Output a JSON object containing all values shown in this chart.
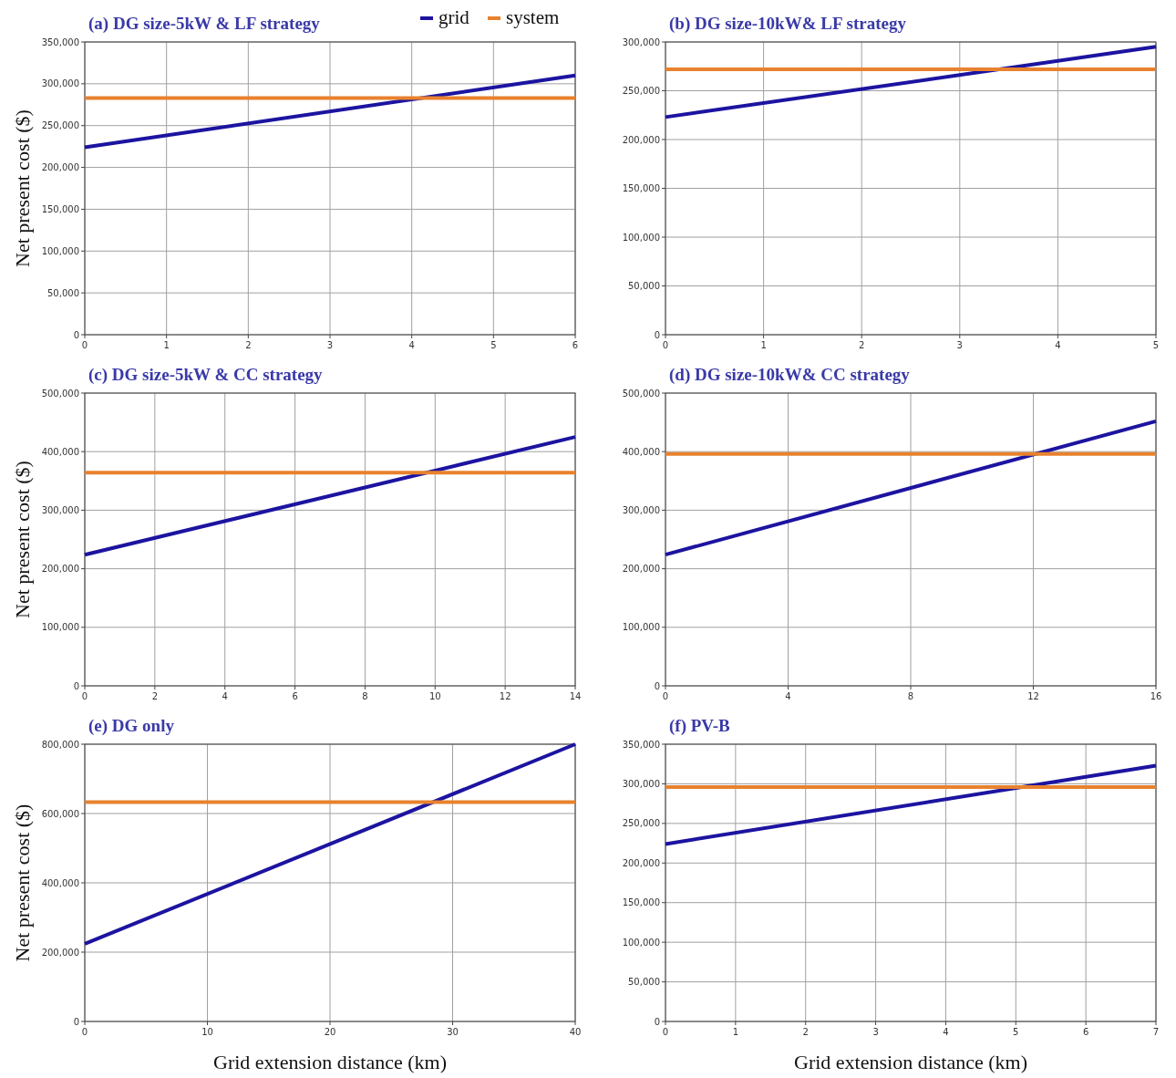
{
  "chart_data": [
    {
      "type": "line",
      "title": "(a) DG size-5kW & LF strategy",
      "ylabel": "Net present cost ($)",
      "legend": "top right",
      "grid": true,
      "xlim": [
        0,
        6
      ],
      "xticks": [
        0,
        1,
        2,
        3,
        4,
        5,
        6
      ],
      "ylim": [
        0,
        350000
      ],
      "yticks": [
        {
          "value": 0,
          "label": "0"
        },
        {
          "value": 50000,
          "label": "50,000"
        },
        {
          "value": 100000,
          "label": "100,000"
        },
        {
          "value": 150000,
          "label": "150,000"
        },
        {
          "value": 200000,
          "label": "200,000"
        },
        {
          "value": 250000,
          "label": "250,000"
        },
        {
          "value": 300000,
          "label": "300,000"
        },
        {
          "value": 350000,
          "label": "350,000"
        }
      ],
      "series": [
        {
          "name": "grid",
          "color": "#1c14a0",
          "x": [
            0,
            6
          ],
          "values": [
            224000,
            310000
          ]
        },
        {
          "name": "system",
          "color": "#e8822e",
          "x": [
            0,
            6
          ],
          "values": [
            283000,
            283000
          ]
        }
      ]
    },
    {
      "type": "line",
      "title": "(b) DG size-10kW& LF strategy",
      "grid": true,
      "xlim": [
        0,
        5
      ],
      "xticks": [
        0,
        1,
        2,
        3,
        4,
        5
      ],
      "ylim": [
        0,
        300000
      ],
      "yticks": [
        {
          "value": 0,
          "label": "0"
        },
        {
          "value": 50000,
          "label": "50,000"
        },
        {
          "value": 100000,
          "label": "100,000"
        },
        {
          "value": 150000,
          "label": "150,000"
        },
        {
          "value": 200000,
          "label": "200,000"
        },
        {
          "value": 250000,
          "label": "250,000"
        },
        {
          "value": 300000,
          "label": "300,000"
        }
      ],
      "series": [
        {
          "color": "#1c14a0",
          "x": [
            0,
            5
          ],
          "values": [
            223000,
            295000
          ]
        },
        {
          "color": "#e8822e",
          "x": [
            0,
            5
          ],
          "values": [
            272000,
            272000
          ]
        }
      ]
    },
    {
      "type": "line",
      "title": "(c) DG size-5kW & CC strategy",
      "ylabel": "Net present cost ($)",
      "grid": true,
      "xlim": [
        0,
        14
      ],
      "xticks": [
        0,
        2,
        4,
        6,
        8,
        10,
        12,
        14
      ],
      "ylim": [
        0,
        500000
      ],
      "yticks": [
        {
          "value": 0,
          "label": "0"
        },
        {
          "value": 100000,
          "label": "100,000"
        },
        {
          "value": 200000,
          "label": "200,000"
        },
        {
          "value": 300000,
          "label": "300,000"
        },
        {
          "value": 400000,
          "label": "400,000"
        },
        {
          "value": 500000,
          "label": "500,000"
        }
      ],
      "series": [
        {
          "color": "#1c14a0",
          "x": [
            0,
            14
          ],
          "values": [
            224000,
            425000
          ]
        },
        {
          "color": "#e8822e",
          "x": [
            0,
            14
          ],
          "values": [
            364000,
            364000
          ]
        }
      ]
    },
    {
      "type": "line",
      "title": "(d) DG size-10kW& CC strategy",
      "grid": true,
      "xlim": [
        0,
        16
      ],
      "xticks": [
        0,
        4,
        8,
        12,
        16
      ],
      "ylim": [
        0,
        500000
      ],
      "yticks": [
        {
          "value": 0,
          "label": "0"
        },
        {
          "value": 100000,
          "label": "100,000"
        },
        {
          "value": 200000,
          "label": "200,000"
        },
        {
          "value": 300000,
          "label": "300,000"
        },
        {
          "value": 400000,
          "label": "400,000"
        },
        {
          "value": 500000,
          "label": "500,000"
        }
      ],
      "series": [
        {
          "color": "#1c14a0",
          "x": [
            0,
            16
          ],
          "values": [
            224000,
            452000
          ]
        },
        {
          "color": "#e8822e",
          "x": [
            0,
            16
          ],
          "values": [
            396000,
            396000
          ]
        }
      ]
    },
    {
      "type": "line",
      "title": "(e) DG only",
      "xlabel": "Grid extension distance (km)",
      "ylabel": "Net present cost ($)",
      "grid": true,
      "xlim": [
        0,
        40
      ],
      "xticks": [
        0,
        10,
        20,
        30,
        40
      ],
      "ylim": [
        0,
        800000
      ],
      "yticks": [
        {
          "value": 0,
          "label": "0"
        },
        {
          "value": 200000,
          "label": "200,000"
        },
        {
          "value": 400000,
          "label": "400,000"
        },
        {
          "value": 600000,
          "label": "600,000"
        },
        {
          "value": 800000,
          "label": "800,000"
        }
      ],
      "series": [
        {
          "color": "#1c14a0",
          "x": [
            0,
            40
          ],
          "values": [
            224000,
            800000
          ]
        },
        {
          "color": "#e8822e",
          "x": [
            0,
            40
          ],
          "values": [
            633000,
            633000
          ]
        }
      ]
    },
    {
      "type": "line",
      "title": "(f) PV-B",
      "xlabel": "Grid extension distance (km)",
      "grid": true,
      "xlim": [
        0,
        7
      ],
      "xticks": [
        0,
        1,
        2,
        3,
        4,
        5,
        6,
        7
      ],
      "ylim": [
        0,
        350000
      ],
      "yticks": [
        {
          "value": 0,
          "label": "0"
        },
        {
          "value": 50000,
          "label": "50,000"
        },
        {
          "value": 100000,
          "label": "100,000"
        },
        {
          "value": 150000,
          "label": "150,000"
        },
        {
          "value": 200000,
          "label": "200,000"
        },
        {
          "value": 250000,
          "label": "250,000"
        },
        {
          "value": 300000,
          "label": "300,000"
        },
        {
          "value": 350000,
          "label": "350,000"
        }
      ],
      "series": [
        {
          "color": "#1c14a0",
          "x": [
            0,
            7
          ],
          "values": [
            224000,
            323000
          ]
        },
        {
          "color": "#e8822e",
          "x": [
            0,
            7
          ],
          "values": [
            296000,
            296000
          ]
        }
      ]
    }
  ]
}
